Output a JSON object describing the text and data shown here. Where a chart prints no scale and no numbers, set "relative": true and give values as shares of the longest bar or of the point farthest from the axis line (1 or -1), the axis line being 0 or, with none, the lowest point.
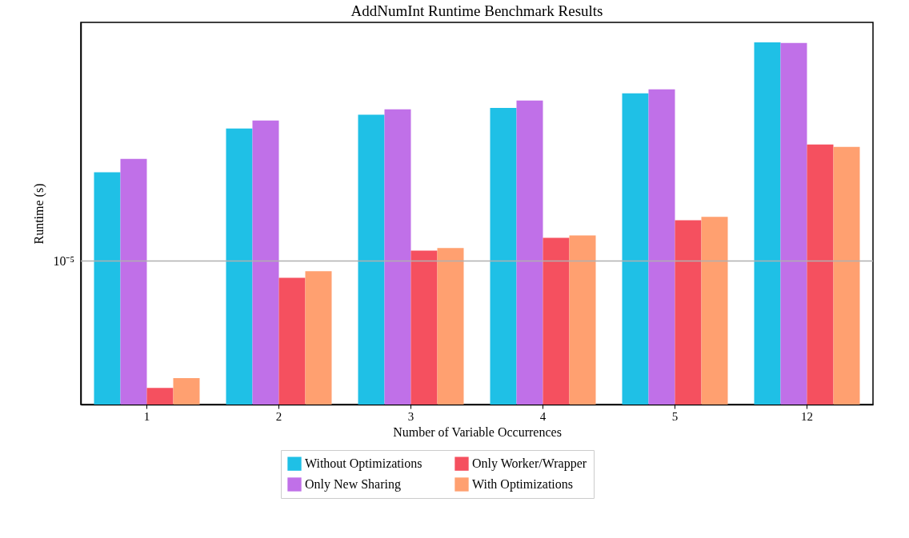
{
  "chart_data": {
    "type": "bar",
    "title": "AddNumInt Runtime Benchmark Results",
    "xlabel": "Number of Variable Occurrences",
    "ylabel": "Runtime (s)",
    "relative": true,
    "categories": [
      "1",
      "2",
      "3",
      "4",
      "5",
      "12"
    ],
    "series": [
      {
        "name": "Without Optimizations",
        "color": "#1fc0e6",
        "values": [
          0.641,
          0.762,
          0.8,
          0.819,
          0.859,
          1.0
        ]
      },
      {
        "name": "Only New Sharing",
        "color": "#c070e8",
        "values": [
          0.678,
          0.784,
          0.815,
          0.839,
          0.87,
          0.998
        ]
      },
      {
        "name": "Only Worker/Wrapper",
        "color": "#f5505f",
        "values": [
          0.046,
          0.35,
          0.425,
          0.46,
          0.509,
          0.718
        ]
      },
      {
        "name": "With Optimizations",
        "color": "#ffa070",
        "values": [
          0.073,
          0.368,
          0.432,
          0.467,
          0.518,
          0.711
        ]
      }
    ],
    "ref_lines": [
      {
        "axis": "y",
        "value": 0.396,
        "label": "10⁻⁵",
        "color": "#b0b0b0"
      }
    ],
    "legend": "bottom"
  }
}
